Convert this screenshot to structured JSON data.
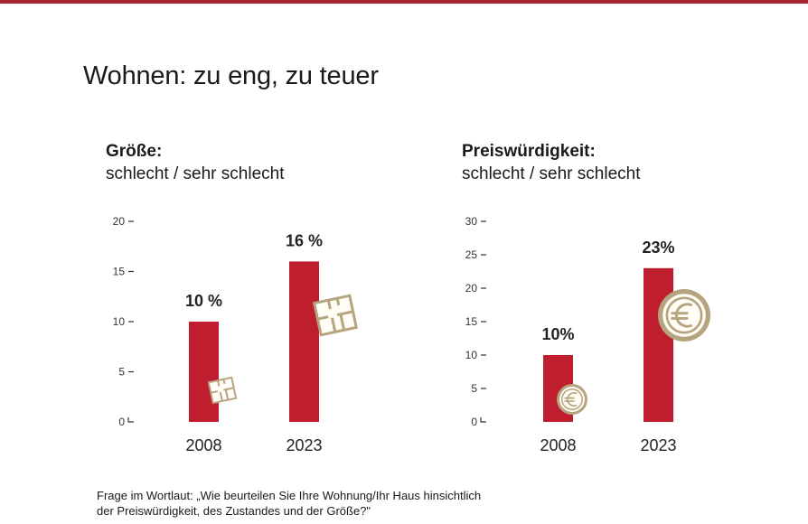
{
  "title": "Wohnen: zu eng, zu teuer",
  "colors": {
    "bar": "#be1e2d",
    "icon": "#b5a47e",
    "accent": "#a8242f"
  },
  "chart_data": [
    {
      "type": "bar",
      "title": "Größe:",
      "subtitle": "schlecht / sehr schlecht",
      "categories": [
        "2008",
        "2023"
      ],
      "values": [
        10,
        16
      ],
      "data_labels": [
        "10 %",
        "16 %"
      ],
      "ylim": [
        0,
        20
      ],
      "yticks": [
        "0",
        "5",
        "10",
        "15",
        "20"
      ],
      "icon": "floor-plan-icon",
      "grid": false
    },
    {
      "type": "bar",
      "title": "Preiswürdigkeit:",
      "subtitle": "schlecht / sehr schlecht",
      "categories": [
        "2008",
        "2023"
      ],
      "values": [
        10,
        23
      ],
      "data_labels": [
        "10%",
        "23%"
      ],
      "ylim": [
        0,
        30
      ],
      "yticks": [
        "0",
        "5",
        "10",
        "15",
        "20",
        "25",
        "30"
      ],
      "icon": "euro-coin-icon",
      "grid": false
    }
  ],
  "footnote": {
    "line1": "Frage im Wortlaut: „Wie beurteilen Sie Ihre Wohnung/Ihr Haus hinsichtlich",
    "line2": "der Preiswürdigkeit, des Zustandes und der Größe?\""
  }
}
